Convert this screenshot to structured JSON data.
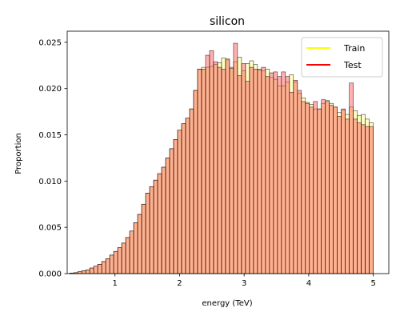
{
  "chart_data": {
    "type": "bar",
    "title": "silicon",
    "xlabel": "energy (TeV)",
    "ylabel": "Proportion",
    "xlim": [
      0.26,
      5.24
    ],
    "ylim": [
      0,
      0.0262
    ],
    "xticks": [
      1,
      2,
      3,
      4,
      5
    ],
    "yticks": [
      0.0,
      0.005,
      0.01,
      0.015,
      0.02,
      0.025
    ],
    "ytick_format": 3,
    "grid": false,
    "legend_position": "top-right",
    "bin_range": [
      0.3,
      5.0
    ],
    "series": [
      {
        "name": "Train",
        "line_color": "#ffff00",
        "fill_color": "#ffff99",
        "fill_opacity": 0.6,
        "values": [
          5e-05,
          0.0001,
          0.0002,
          0.0003,
          0.0004,
          0.0006,
          0.0008,
          0.001,
          0.0013,
          0.0016,
          0.002,
          0.0024,
          0.0028,
          0.0033,
          0.0039,
          0.0046,
          0.0055,
          0.0064,
          0.0075,
          0.0087,
          0.0094,
          0.0101,
          0.0108,
          0.0115,
          0.0125,
          0.0135,
          0.0145,
          0.0155,
          0.0162,
          0.0168,
          0.0178,
          0.0198,
          0.0221,
          0.0223,
          0.0223,
          0.0224,
          0.0226,
          0.0228,
          0.0233,
          0.0232,
          0.0223,
          0.0229,
          0.0234,
          0.0219,
          0.0227,
          0.023,
          0.0226,
          0.0221,
          0.0219,
          0.0221,
          0.0212,
          0.021,
          0.0203,
          0.0203,
          0.0207,
          0.0215,
          0.0207,
          0.0195,
          0.019,
          0.0185,
          0.0183,
          0.0178,
          0.0178,
          0.0184,
          0.0187,
          0.0184,
          0.018,
          0.0174,
          0.0177,
          0.0172,
          0.018,
          0.0176,
          0.0171,
          0.0172,
          0.0167,
          0.0163
        ]
      },
      {
        "name": "Test",
        "line_color": "#ff0000",
        "fill_color": "#ff5050",
        "fill_opacity": 0.45,
        "values": [
          5e-05,
          0.0001,
          0.0002,
          0.0003,
          0.0004,
          0.0006,
          0.0008,
          0.001,
          0.0013,
          0.0016,
          0.002,
          0.0024,
          0.0028,
          0.0033,
          0.0039,
          0.0046,
          0.0055,
          0.0064,
          0.0075,
          0.0087,
          0.0094,
          0.0101,
          0.0108,
          0.0115,
          0.0125,
          0.0135,
          0.0145,
          0.0155,
          0.0162,
          0.0168,
          0.0178,
          0.0198,
          0.0221,
          0.0221,
          0.0236,
          0.0241,
          0.0229,
          0.0223,
          0.0221,
          0.0231,
          0.0222,
          0.0249,
          0.0214,
          0.0227,
          0.0208,
          0.0223,
          0.0221,
          0.022,
          0.0223,
          0.0213,
          0.0217,
          0.0218,
          0.0213,
          0.0218,
          0.0213,
          0.0196,
          0.0209,
          0.0198,
          0.0186,
          0.0184,
          0.018,
          0.0186,
          0.0178,
          0.0188,
          0.0186,
          0.0182,
          0.018,
          0.017,
          0.0178,
          0.0167,
          0.0206,
          0.0167,
          0.0163,
          0.0161,
          0.0159,
          0.0159
        ]
      }
    ],
    "edge_color": "#000000"
  }
}
